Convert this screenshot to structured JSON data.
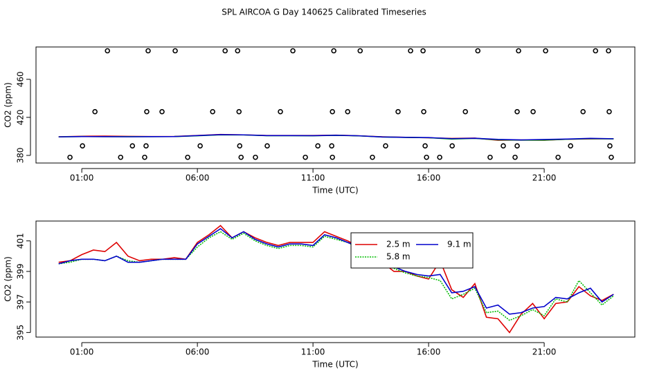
{
  "title": "SPL AIRCOA G  Day 140625  Calibrated Timeseries",
  "chart_data": [
    {
      "type": "line",
      "xlabel": "Time (UTC)",
      "ylabel": "CO2 (ppm)",
      "xlim": [
        -0.98,
        24.92
      ],
      "ylim": [
        372,
        494
      ],
      "xticks": [
        {
          "value": 1,
          "label": "01:00"
        },
        {
          "value": 6,
          "label": "06:00"
        },
        {
          "value": 11,
          "label": "11:00"
        },
        {
          "value": 16,
          "label": "16:00"
        },
        {
          "value": 21,
          "label": "21:00"
        }
      ],
      "yticks": [
        380,
        420,
        460
      ],
      "x": [
        0,
        1,
        2,
        3,
        4,
        5,
        6,
        7,
        8,
        9,
        10,
        11,
        12,
        13,
        14,
        15,
        16,
        17,
        18,
        19,
        20,
        21,
        22,
        23,
        24
      ],
      "series": [
        {
          "color": "#dd0000",
          "values": [
            399.6,
            400.1,
            400.3,
            400.0,
            399.8,
            399.9,
            400.9,
            402.0,
            401.6,
            400.9,
            400.9,
            400.9,
            401.3,
            400.6,
            399.6,
            399.0,
            398.5,
            397.8,
            398.2,
            395.9,
            396.2,
            395.9,
            397.0,
            397.4,
            397.5
          ]
        },
        {
          "color": "#00bb00",
          "values": [
            399.5,
            399.8,
            399.7,
            399.7,
            399.7,
            399.8,
            400.6,
            401.6,
            401.5,
            400.7,
            400.7,
            400.6,
            401.1,
            400.5,
            399.4,
            398.9,
            398.6,
            397.2,
            397.9,
            396.4,
            396.1,
            396.1,
            397.0,
            397.6,
            397.4
          ]
        },
        {
          "color": "#0000cc",
          "values": [
            399.5,
            399.8,
            399.7,
            399.6,
            399.7,
            399.8,
            400.8,
            401.8,
            401.6,
            400.8,
            400.8,
            400.7,
            401.2,
            400.6,
            399.4,
            399.0,
            398.7,
            397.6,
            398.0,
            396.8,
            396.3,
            396.7,
            397.2,
            397.9,
            397.5
          ]
        },
        {
          "type": "scatter",
          "color": "#000000",
          "x": [
            2.11,
            3.87,
            5.04,
            7.2,
            7.74,
            10.13,
            11.9,
            13.04,
            15.22,
            15.76,
            18.13,
            19.89,
            21.06,
            23.22,
            23.78,
            1.57,
            3.81,
            4.47,
            6.66,
            7.8,
            9.59,
            11.84,
            12.5,
            14.68,
            15.79,
            17.59,
            19.83,
            20.52,
            22.68,
            23.81,
            1.03,
            3.19,
            3.78,
            6.12,
            7.83,
            9.02,
            11.21,
            11.81,
            14.14,
            15.85,
            17.02,
            19.23,
            19.83,
            22.14,
            23.84,
            0.49,
            2.68,
            3.72,
            5.58,
            7.89,
            8.51,
            10.67,
            11.84,
            13.57,
            15.91,
            16.48,
            18.66,
            19.74,
            21.6,
            23.9
          ],
          "values": [
            490,
            490,
            490,
            490,
            490,
            490,
            490,
            490,
            490,
            490,
            490,
            490,
            490,
            490,
            490,
            426,
            426,
            426,
            426,
            426,
            426,
            426,
            426,
            426,
            426,
            426,
            426,
            426,
            426,
            426,
            390,
            390,
            390,
            390,
            390,
            390,
            390,
            390,
            390,
            390,
            390,
            390,
            390,
            390,
            390,
            378,
            378,
            378,
            378,
            378,
            378,
            378,
            378,
            378,
            378,
            378,
            378,
            378,
            378,
            378
          ]
        }
      ]
    },
    {
      "type": "line",
      "xlabel": "Time (UTC)",
      "ylabel": "CO2 (ppm)",
      "legend": "top-center",
      "xlim": [
        -0.98,
        24.92
      ],
      "ylim": [
        394.7,
        402.3
      ],
      "xticks": [
        {
          "value": 1,
          "label": "01:00"
        },
        {
          "value": 6,
          "label": "06:00"
        },
        {
          "value": 11,
          "label": "11:00"
        },
        {
          "value": 16,
          "label": "16:00"
        },
        {
          "value": 21,
          "label": "21:00"
        }
      ],
      "yticks": [
        395,
        397,
        399,
        401
      ],
      "x": [
        0,
        0.5,
        1,
        1.5,
        2,
        2.5,
        3,
        3.5,
        4,
        4.5,
        5,
        5.5,
        6,
        6.5,
        7,
        7.5,
        8,
        8.5,
        9,
        9.5,
        10,
        10.5,
        11,
        11.5,
        12,
        12.5,
        13,
        13.5,
        14,
        14.5,
        15,
        15.5,
        16,
        16.5,
        17,
        17.5,
        18,
        18.5,
        19,
        19.5,
        20,
        20.5,
        21,
        21.5,
        22,
        22.5,
        23,
        23.5,
        24
      ],
      "series": [
        {
          "name": "2.5 m",
          "color": "#dd0000",
          "values": [
            399.6,
            399.7,
            400.1,
            400.4,
            400.3,
            400.9,
            400.0,
            399.7,
            399.8,
            399.8,
            399.9,
            399.8,
            400.9,
            401.4,
            402.0,
            401.2,
            401.6,
            401.2,
            400.9,
            400.7,
            400.9,
            400.9,
            400.9,
            401.6,
            401.3,
            401.0,
            400.6,
            400.2,
            399.6,
            399.0,
            399.0,
            398.7,
            398.5,
            399.7,
            397.8,
            397.3,
            398.2,
            396.0,
            395.9,
            395.0,
            396.2,
            396.9,
            395.9,
            396.9,
            397.0,
            398.0,
            397.4,
            397.1,
            397.5
          ]
        },
        {
          "name": "5.8 m",
          "color": "#00bb00",
          "linestyle": "dotted",
          "values": [
            399.5,
            399.6,
            399.8,
            399.8,
            399.7,
            400.0,
            399.7,
            399.6,
            399.7,
            399.8,
            399.8,
            399.8,
            400.6,
            401.2,
            401.6,
            401.1,
            401.5,
            401.0,
            400.7,
            400.5,
            400.7,
            400.7,
            400.6,
            401.3,
            401.1,
            400.9,
            400.5,
            400.1,
            399.4,
            399.2,
            398.9,
            398.7,
            398.6,
            398.4,
            397.2,
            397.5,
            397.9,
            396.3,
            396.4,
            395.8,
            396.1,
            396.5,
            396.1,
            397.2,
            397.0,
            398.4,
            397.6,
            396.8,
            397.4
          ]
        },
        {
          "name": "9.1 m",
          "color": "#0000cc",
          "values": [
            399.5,
            399.7,
            399.8,
            399.8,
            399.7,
            400.0,
            399.6,
            399.6,
            399.7,
            399.8,
            399.8,
            399.8,
            400.8,
            401.3,
            401.8,
            401.2,
            401.6,
            401.1,
            400.8,
            400.6,
            400.8,
            400.8,
            400.7,
            401.4,
            401.2,
            400.9,
            400.6,
            400.2,
            399.4,
            399.3,
            399.0,
            398.8,
            398.7,
            398.8,
            397.6,
            397.7,
            398.0,
            396.6,
            396.8,
            396.2,
            396.3,
            396.6,
            396.7,
            397.3,
            397.2,
            397.6,
            397.9,
            397.0,
            397.5
          ]
        }
      ]
    }
  ]
}
